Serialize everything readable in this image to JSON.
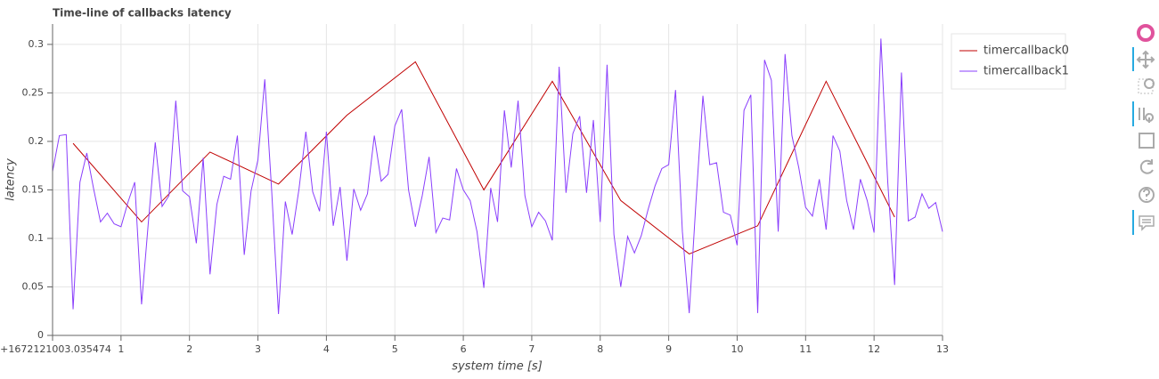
{
  "chart_data": {
    "type": "line",
    "title": "Time-line of callbacks latency",
    "x_label": "system time [s]",
    "y_label": "latency",
    "xlim": [
      0,
      13
    ],
    "ylim": [
      0,
      0.321
    ],
    "xticks": [
      {
        "value": 0,
        "label": "0+1672121003.035474"
      },
      1,
      2,
      3,
      4,
      5,
      6,
      7,
      8,
      9,
      10,
      11,
      12,
      13
    ],
    "yticks": [
      0,
      0.05,
      0.1,
      0.15,
      0.2,
      0.25,
      0.3
    ],
    "grid": true,
    "legend": "top-right-outside",
    "series": [
      {
        "name": "timercallback0",
        "color": "#c00000",
        "x": [
          0.3,
          1.3,
          2.3,
          3.3,
          4.3,
          5.3,
          6.3,
          7.3,
          8.3,
          9.3,
          10.3,
          11.3,
          12.3
        ],
        "values": [
          0.198,
          0.117,
          0.189,
          0.156,
          0.227,
          0.282,
          0.15,
          0.262,
          0.139,
          0.084,
          0.113,
          0.262,
          0.122
        ]
      },
      {
        "name": "timercallback1",
        "color": "#8a3ffc",
        "x": [
          0,
          0.1,
          0.2,
          0.3,
          0.4,
          0.5,
          0.6,
          0.7,
          0.8,
          0.9,
          1,
          1.1,
          1.2,
          1.3,
          1.4,
          1.5,
          1.6,
          1.7,
          1.8,
          1.9,
          2,
          2.1,
          2.2,
          2.3,
          2.4,
          2.5,
          2.6,
          2.7,
          2.8,
          2.9,
          3,
          3.1,
          3.2,
          3.3,
          3.4,
          3.5,
          3.6,
          3.7,
          3.8,
          3.9,
          4,
          4.1,
          4.2,
          4.3,
          4.4,
          4.5,
          4.6,
          4.7,
          4.8,
          4.9,
          5,
          5.1,
          5.2,
          5.3,
          5.4,
          5.5,
          5.6,
          5.7,
          5.8,
          5.9,
          6,
          6.1,
          6.2,
          6.3,
          6.4,
          6.5,
          6.6,
          6.7,
          6.8,
          6.9,
          7,
          7.1,
          7.2,
          7.3,
          7.4,
          7.5,
          7.6,
          7.7,
          7.8,
          7.9,
          8,
          8.1,
          8.2,
          8.3,
          8.4,
          8.5,
          8.6,
          8.7,
          8.8,
          8.9,
          9,
          9.1,
          9.2,
          9.3,
          9.4,
          9.5,
          9.6,
          9.7,
          9.8,
          9.9,
          10,
          10.1,
          10.2,
          10.3,
          10.4,
          10.5,
          10.6,
          10.7,
          10.8,
          10.9,
          11,
          11.1,
          11.2,
          11.3,
          11.4,
          11.5,
          11.6,
          11.7,
          11.8,
          11.9,
          12,
          12.1,
          12.2,
          12.3,
          12.4,
          12.5,
          12.6,
          12.7,
          12.8,
          12.9,
          13
        ],
        "values": [
          0.169,
          0.206,
          0.207,
          0.027,
          0.158,
          0.188,
          0.151,
          0.117,
          0.126,
          0.115,
          0.112,
          0.137,
          0.158,
          0.032,
          0.117,
          0.199,
          0.133,
          0.144,
          0.242,
          0.149,
          0.143,
          0.095,
          0.183,
          0.063,
          0.135,
          0.164,
          0.161,
          0.206,
          0.083,
          0.149,
          0.181,
          0.264,
          0.15,
          0.022,
          0.138,
          0.104,
          0.151,
          0.21,
          0.148,
          0.128,
          0.21,
          0.113,
          0.153,
          0.077,
          0.151,
          0.129,
          0.146,
          0.206,
          0.159,
          0.166,
          0.216,
          0.233,
          0.15,
          0.112,
          0.144,
          0.184,
          0.106,
          0.121,
          0.119,
          0.172,
          0.15,
          0.139,
          0.107,
          0.049,
          0.152,
          0.117,
          0.232,
          0.173,
          0.242,
          0.144,
          0.112,
          0.127,
          0.118,
          0.098,
          0.277,
          0.147,
          0.208,
          0.226,
          0.147,
          0.222,
          0.117,
          0.279,
          0.104,
          0.05,
          0.102,
          0.085,
          0.103,
          0.13,
          0.154,
          0.172,
          0.176,
          0.253,
          0.107,
          0.023,
          0.139,
          0.247,
          0.176,
          0.178,
          0.127,
          0.124,
          0.093,
          0.232,
          0.248,
          0.023,
          0.284,
          0.263,
          0.107,
          0.29,
          0.206,
          0.173,
          0.132,
          0.123,
          0.161,
          0.109,
          0.206,
          0.19,
          0.139,
          0.109,
          0.161,
          0.139,
          0.106,
          0.306,
          0.158,
          0.052,
          0.271,
          0.118,
          0.122,
          0.146,
          0.131,
          0.137,
          0.107
        ]
      }
    ]
  }
}
